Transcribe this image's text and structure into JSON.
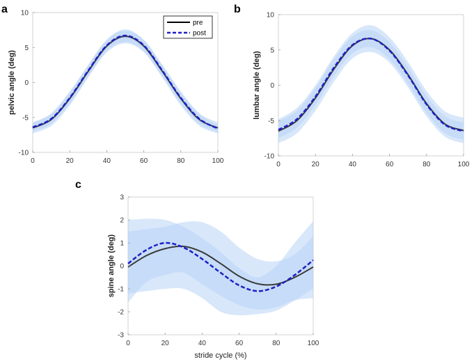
{
  "chart_data": [
    {
      "panel": "a",
      "type": "line",
      "title": "",
      "xlabel": "",
      "ylabel": "pelvic angle (deg)",
      "xlim": [
        0,
        100
      ],
      "ylim": [
        -10,
        10
      ],
      "xticks": [
        "0",
        "20",
        "40",
        "60",
        "80",
        "100"
      ],
      "yticks": [
        "10",
        "5",
        "0",
        "-5",
        "-10"
      ],
      "legend": {
        "position": "top-right",
        "entries": [
          "pre",
          "post"
        ]
      },
      "x": [
        0,
        10,
        20,
        30,
        40,
        50,
        60,
        70,
        80,
        90,
        100
      ],
      "series": [
        {
          "name": "pre",
          "values": [
            -6.5,
            -5.3,
            -2.3,
            1.6,
            5.2,
            6.6,
            5.2,
            1.6,
            -2.3,
            -5.3,
            -6.5
          ],
          "band_lower": [
            -7.3,
            -6.2,
            -3.3,
            0.7,
            4.3,
            5.6,
            4.3,
            0.7,
            -3.3,
            -6.2,
            -7.3
          ],
          "band_upper": [
            -5.7,
            -4.4,
            -1.3,
            2.5,
            6.1,
            7.4,
            6.1,
            2.5,
            -1.3,
            -4.4,
            -5.7
          ]
        },
        {
          "name": "post",
          "values": [
            -6.4,
            -5.2,
            -2.2,
            1.7,
            5.3,
            6.7,
            5.3,
            1.7,
            -2.2,
            -5.2,
            -6.6
          ],
          "band_lower": [
            -7.0,
            -5.9,
            -3.0,
            0.9,
            4.5,
            5.8,
            4.5,
            0.9,
            -3.0,
            -5.9,
            -7.1
          ],
          "band_upper": [
            -5.8,
            -4.5,
            -1.4,
            2.5,
            6.1,
            7.6,
            6.1,
            2.5,
            -1.4,
            -4.5,
            -6.1
          ]
        }
      ]
    },
    {
      "panel": "b",
      "type": "line",
      "title": "",
      "xlabel": "",
      "ylabel": "lumbar angle (deg)",
      "xlim": [
        0,
        100
      ],
      "ylim": [
        -10,
        10
      ],
      "xticks": [
        "0",
        "20",
        "40",
        "60",
        "80",
        "100"
      ],
      "yticks": [
        "10",
        "5",
        "0",
        "-5",
        "-10"
      ],
      "x": [
        0,
        10,
        20,
        30,
        40,
        50,
        60,
        70,
        80,
        90,
        100
      ],
      "series": [
        {
          "name": "pre",
          "values": [
            -6.5,
            -5.0,
            -1.8,
            2.3,
            5.6,
            6.6,
            5.0,
            1.5,
            -2.6,
            -5.5,
            -6.4
          ],
          "band_lower": [
            -8.2,
            -6.8,
            -3.6,
            0.5,
            3.8,
            4.7,
            3.2,
            -0.3,
            -4.4,
            -7.3,
            -8.2
          ],
          "band_upper": [
            -4.8,
            -3.2,
            0.0,
            4.1,
            7.4,
            8.5,
            6.8,
            3.3,
            -0.8,
            -3.7,
            -4.6
          ]
        },
        {
          "name": "post",
          "values": [
            -6.3,
            -4.8,
            -1.6,
            2.5,
            5.7,
            6.6,
            4.9,
            1.4,
            -2.7,
            -5.6,
            -6.5
          ],
          "band_lower": [
            -7.5,
            -6.0,
            -2.8,
            1.3,
            4.5,
            5.4,
            3.7,
            0.2,
            -3.9,
            -6.8,
            -7.7
          ],
          "band_upper": [
            -5.1,
            -3.6,
            -0.4,
            3.7,
            6.9,
            7.8,
            6.1,
            2.6,
            -1.5,
            -4.4,
            -5.3
          ]
        }
      ]
    },
    {
      "panel": "c",
      "type": "line",
      "title": "",
      "xlabel": "stride cycle (%)",
      "ylabel": "spine angle (deg)",
      "xlim": [
        0,
        100
      ],
      "ylim": [
        -3,
        3
      ],
      "xticks": [
        "0",
        "20",
        "40",
        "60",
        "80",
        "100"
      ],
      "yticks": [
        "3",
        "2",
        "1",
        "0",
        "-1",
        "-2",
        "-3"
      ],
      "x": [
        0,
        10,
        20,
        30,
        40,
        50,
        60,
        70,
        80,
        90,
        100
      ],
      "series": [
        {
          "name": "pre",
          "values": [
            -0.05,
            0.45,
            0.75,
            0.85,
            0.6,
            0.1,
            -0.45,
            -0.78,
            -0.8,
            -0.5,
            -0.05
          ],
          "band_lower": [
            -1.6,
            -0.7,
            -0.4,
            -0.3,
            -0.8,
            -1.3,
            -1.7,
            -1.9,
            -1.8,
            -1.5,
            -1.4
          ],
          "band_upper": [
            1.5,
            1.6,
            1.7,
            1.9,
            1.9,
            1.5,
            0.8,
            0.3,
            0.2,
            0.5,
            1.3
          ]
        },
        {
          "name": "post",
          "values": [
            0.1,
            0.7,
            1.0,
            0.8,
            0.3,
            -0.3,
            -0.85,
            -1.1,
            -0.9,
            -0.4,
            0.25
          ],
          "band_lower": [
            -1.2,
            -1.1,
            -1.0,
            -1.0,
            -1.4,
            -2.0,
            -2.15,
            -2.1,
            -1.95,
            -1.5,
            -1.0
          ],
          "band_upper": [
            2.0,
            2.05,
            2.0,
            1.7,
            1.2,
            0.6,
            -0.1,
            -0.5,
            0.0,
            1.0,
            1.95
          ]
        }
      ]
    }
  ],
  "colors": {
    "pre": "#3a3a3a",
    "post": "#1f1fc8",
    "band": "#b8d4f5"
  }
}
